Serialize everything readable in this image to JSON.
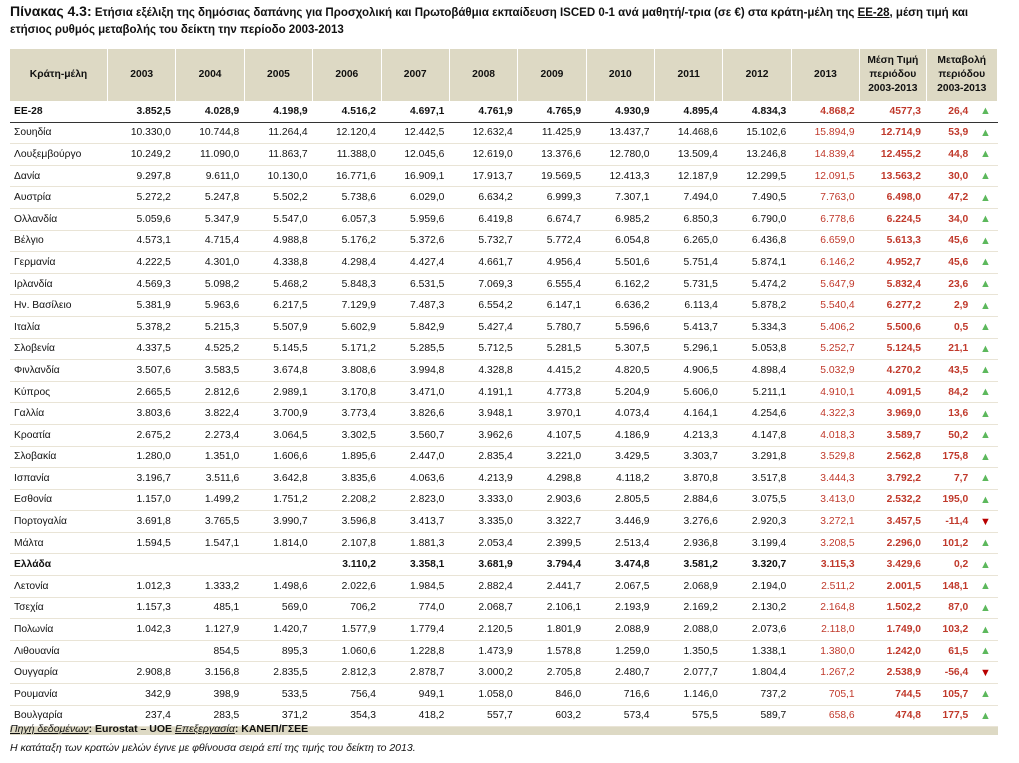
{
  "caption": {
    "label": "Πίνακας 4.3:",
    "text": " Ετήσια εξέλιξη της δημόσιας δαπάνης για Προσχολική και Πρωτοβάθμια εκπαίδευση ISCED 0-1 ανά μαθητή/-τρια (σε €) στα κράτη-μέλη της ",
    "link": "ΕΕ-28",
    "text2": ", μέση τιμή και ετήσιος ρυθμός μεταβολής του δείκτη την περίοδο 2003-2013"
  },
  "headers": [
    "Κράτη-μέλη",
    "2003",
    "2004",
    "2005",
    "2006",
    "2007",
    "2008",
    "2009",
    "2010",
    "2011",
    "2012",
    "2013",
    "Μέση Τιμή περιόδου 2003-2013",
    "Μεταβολή περιόδου 2003-2013"
  ],
  "rows": [
    {
      "country": "ΕΕ-28",
      "values": [
        "3.852,5",
        "4.028,9",
        "4.198,9",
        "4.516,2",
        "4.697,1",
        "4.761,9",
        "4.765,9",
        "4.930,9",
        "4.895,4",
        "4.834,3",
        "4.868,2"
      ],
      "avg": "4577,3",
      "change": "26,4",
      "trend": "▲",
      "style": "eu"
    },
    {
      "country": "Σουηδία",
      "values": [
        "10.330,0",
        "10.744,8",
        "11.264,4",
        "12.120,4",
        "12.442,5",
        "12.632,4",
        "11.425,9",
        "13.437,7",
        "14.468,6",
        "15.102,6",
        "15.894,9"
      ],
      "avg": "12.714,9",
      "change": "53,9",
      "trend": "▲",
      "style": ""
    },
    {
      "country": "Λουξεμβούργο",
      "values": [
        "10.249,2",
        "11.090,0",
        "11.863,7",
        "11.388,0",
        "12.045,6",
        "12.619,0",
        "13.376,6",
        "12.780,0",
        "13.509,4",
        "13.246,8",
        "14.839,4"
      ],
      "avg": "12.455,2",
      "change": "44,8",
      "trend": "▲",
      "style": ""
    },
    {
      "country": "Δανία",
      "values": [
        "9.297,8",
        "9.611,0",
        "10.130,0",
        "16.771,6",
        "16.909,1",
        "17.913,7",
        "19.569,5",
        "12.413,3",
        "12.187,9",
        "12.299,5",
        "12.091,5"
      ],
      "avg": "13.563,2",
      "change": "30,0",
      "trend": "▲",
      "style": ""
    },
    {
      "country": "Αυστρία",
      "values": [
        "5.272,2",
        "5.247,8",
        "5.502,2",
        "5.738,6",
        "6.029,0",
        "6.634,2",
        "6.999,3",
        "7.307,1",
        "7.494,0",
        "7.490,5",
        "7.763,0"
      ],
      "avg": "6.498,0",
      "change": "47,2",
      "trend": "▲",
      "style": ""
    },
    {
      "country": "Ολλανδία",
      "values": [
        "5.059,6",
        "5.347,9",
        "5.547,0",
        "6.057,3",
        "5.959,6",
        "6.419,8",
        "6.674,7",
        "6.985,2",
        "6.850,3",
        "6.790,0",
        "6.778,6"
      ],
      "avg": "6.224,5",
      "change": "34,0",
      "trend": "▲",
      "style": ""
    },
    {
      "country": "Βέλγιο",
      "values": [
        "4.573,1",
        "4.715,4",
        "4.988,8",
        "5.176,2",
        "5.372,6",
        "5.732,7",
        "5.772,4",
        "6.054,8",
        "6.265,0",
        "6.436,8",
        "6.659,0"
      ],
      "avg": "5.613,3",
      "change": "45,6",
      "trend": "▲",
      "style": ""
    },
    {
      "country": "Γερμανία",
      "values": [
        "4.222,5",
        "4.301,0",
        "4.338,8",
        "4.298,4",
        "4.427,4",
        "4.661,7",
        "4.956,4",
        "5.501,6",
        "5.751,4",
        "5.874,1",
        "6.146,2"
      ],
      "avg": "4.952,7",
      "change": "45,6",
      "trend": "▲",
      "style": ""
    },
    {
      "country": "Ιρλανδία",
      "values": [
        "4.569,3",
        "5.098,2",
        "5.468,2",
        "5.848,3",
        "6.531,5",
        "7.069,3",
        "6.555,4",
        "6.162,2",
        "5.731,5",
        "5.474,2",
        "5.647,9"
      ],
      "avg": "5.832,4",
      "change": "23,6",
      "trend": "▲",
      "style": ""
    },
    {
      "country": "Ην. Βασίλειο",
      "values": [
        "5.381,9",
        "5.963,6",
        "6.217,5",
        "7.129,9",
        "7.487,3",
        "6.554,2",
        "6.147,1",
        "6.636,2",
        "6.113,4",
        "5.878,2",
        "5.540,4"
      ],
      "avg": "6.277,2",
      "change": "2,9",
      "trend": "▲",
      "style": ""
    },
    {
      "country": "Ιταλία",
      "values": [
        "5.378,2",
        "5.215,3",
        "5.507,9",
        "5.602,9",
        "5.842,9",
        "5.427,4",
        "5.780,7",
        "5.596,6",
        "5.413,7",
        "5.334,3",
        "5.406,2"
      ],
      "avg": "5.500,6",
      "change": "0,5",
      "trend": "▲",
      "style": ""
    },
    {
      "country": "Σλοβενία",
      "values": [
        "4.337,5",
        "4.525,2",
        "5.145,5",
        "5.171,2",
        "5.285,5",
        "5.712,5",
        "5.281,5",
        "5.307,5",
        "5.296,1",
        "5.053,8",
        "5.252,7"
      ],
      "avg": "5.124,5",
      "change": "21,1",
      "trend": "▲",
      "style": ""
    },
    {
      "country": "Φινλανδία",
      "values": [
        "3.507,6",
        "3.583,5",
        "3.674,8",
        "3.808,6",
        "3.994,8",
        "4.328,8",
        "4.415,2",
        "4.820,5",
        "4.906,5",
        "4.898,4",
        "5.032,9"
      ],
      "avg": "4.270,2",
      "change": "43,5",
      "trend": "▲",
      "style": ""
    },
    {
      "country": "Κύπρος",
      "values": [
        "2.665,5",
        "2.812,6",
        "2.989,1",
        "3.170,8",
        "3.471,0",
        "4.191,1",
        "4.773,8",
        "5.204,9",
        "5.606,0",
        "5.211,1",
        "4.910,1"
      ],
      "avg": "4.091,5",
      "change": "84,2",
      "trend": "▲",
      "style": ""
    },
    {
      "country": "Γαλλία",
      "values": [
        "3.803,6",
        "3.822,4",
        "3.700,9",
        "3.773,4",
        "3.826,6",
        "3.948,1",
        "3.970,1",
        "4.073,4",
        "4.164,1",
        "4.254,6",
        "4.322,3"
      ],
      "avg": "3.969,0",
      "change": "13,6",
      "trend": "▲",
      "style": ""
    },
    {
      "country": "Κροατία",
      "values": [
        "2.675,2",
        "2.273,4",
        "3.064,5",
        "3.302,5",
        "3.560,7",
        "3.962,6",
        "4.107,5",
        "4.186,9",
        "4.213,3",
        "4.147,8",
        "4.018,3"
      ],
      "avg": "3.589,7",
      "change": "50,2",
      "trend": "▲",
      "style": ""
    },
    {
      "country": "Σλοβακία",
      "values": [
        "1.280,0",
        "1.351,0",
        "1.606,6",
        "1.895,6",
        "2.447,0",
        "2.835,4",
        "3.221,0",
        "3.429,5",
        "3.303,7",
        "3.291,8",
        "3.529,8"
      ],
      "avg": "2.562,8",
      "change": "175,8",
      "trend": "▲",
      "style": ""
    },
    {
      "country": "Ισπανία",
      "values": [
        "3.196,7",
        "3.511,6",
        "3.642,8",
        "3.835,6",
        "4.063,6",
        "4.213,9",
        "4.298,8",
        "4.118,2",
        "3.870,8",
        "3.517,8",
        "3.444,3"
      ],
      "avg": "3.792,2",
      "change": "7,7",
      "trend": "▲",
      "style": ""
    },
    {
      "country": "Εσθονία",
      "values": [
        "1.157,0",
        "1.499,2",
        "1.751,2",
        "2.208,2",
        "2.823,0",
        "3.333,0",
        "2.903,6",
        "2.805,5",
        "2.884,6",
        "3.075,5",
        "3.413,0"
      ],
      "avg": "2.532,2",
      "change": "195,0",
      "trend": "▲",
      "style": ""
    },
    {
      "country": "Πορτογαλία",
      "values": [
        "3.691,8",
        "3.765,5",
        "3.990,7",
        "3.596,8",
        "3.413,7",
        "3.335,0",
        "3.322,7",
        "3.446,9",
        "3.276,6",
        "2.920,3",
        "3.272,1"
      ],
      "avg": "3.457,5",
      "change": "-11,4",
      "trend": "▼",
      "style": ""
    },
    {
      "country": "Μάλτα",
      "values": [
        "1.594,5",
        "1.547,1",
        "1.814,0",
        "2.107,8",
        "1.881,3",
        "2.053,4",
        "2.399,5",
        "2.513,4",
        "2.936,8",
        "3.199,4",
        "3.208,5"
      ],
      "avg": "2.296,0",
      "change": "101,2",
      "trend": "▲",
      "style": ""
    },
    {
      "country": "Ελλάδα",
      "values": [
        "",
        "",
        "",
        "3.110,2",
        "3.358,1",
        "3.681,9",
        "3.794,4",
        "3.474,8",
        "3.581,2",
        "3.320,7",
        "3.115,3"
      ],
      "avg": "3.429,6",
      "change": "0,2",
      "trend": "▲",
      "style": "hl"
    },
    {
      "country": "Λετονία",
      "values": [
        "1.012,3",
        "1.333,2",
        "1.498,6",
        "2.022,6",
        "1.984,5",
        "2.882,4",
        "2.441,7",
        "2.067,5",
        "2.068,9",
        "2.194,0",
        "2.511,2"
      ],
      "avg": "2.001,5",
      "change": "148,1",
      "trend": "▲",
      "style": ""
    },
    {
      "country": "Τσεχία",
      "values": [
        "1.157,3",
        "485,1",
        "569,0",
        "706,2",
        "774,0",
        "2.068,7",
        "2.106,1",
        "2.193,9",
        "2.169,2",
        "2.130,2",
        "2.164,8"
      ],
      "avg": "1.502,2",
      "change": "87,0",
      "trend": "▲",
      "style": ""
    },
    {
      "country": "Πολωνία",
      "values": [
        "1.042,3",
        "1.127,9",
        "1.420,7",
        "1.577,9",
        "1.779,4",
        "2.120,5",
        "1.801,9",
        "2.088,9",
        "2.088,0",
        "2.073,6",
        "2.118,0"
      ],
      "avg": "1.749,0",
      "change": "103,2",
      "trend": "▲",
      "style": ""
    },
    {
      "country": "Λιθουανία",
      "values": [
        "",
        "854,5",
        "895,3",
        "1.060,6",
        "1.228,8",
        "1.473,9",
        "1.578,8",
        "1.259,0",
        "1.350,5",
        "1.338,1",
        "1.380,0"
      ],
      "avg": "1.242,0",
      "change": "61,5",
      "trend": "▲",
      "style": ""
    },
    {
      "country": "Ουγγαρία",
      "values": [
        "2.908,8",
        "3.156,8",
        "2.835,5",
        "2.812,3",
        "2.878,7",
        "3.000,2",
        "2.705,8",
        "2.480,7",
        "2.077,7",
        "1.804,4",
        "1.267,2"
      ],
      "avg": "2.538,9",
      "change": "-56,4",
      "trend": "▼",
      "style": ""
    },
    {
      "country": "Ρουμανία",
      "values": [
        "342,9",
        "398,9",
        "533,5",
        "756,4",
        "949,1",
        "1.058,0",
        "846,0",
        "716,6",
        "1.146,0",
        "737,2",
        "705,1"
      ],
      "avg": "744,5",
      "change": "105,7",
      "trend": "▲",
      "style": ""
    },
    {
      "country": "Βουλγαρία",
      "values": [
        "237,4",
        "283,5",
        "371,2",
        "354,3",
        "418,2",
        "557,7",
        "603,2",
        "573,4",
        "575,5",
        "589,7",
        "658,6"
      ],
      "avg": "474,8",
      "change": "177,5",
      "trend": "▲",
      "style": ""
    }
  ],
  "notes": {
    "source_label": "Πηγή δεδομένων",
    "source_value": ": Eurostat – UOE ",
    "processing_label": "Επεξεργασία",
    "processing_value": ": ΚΑΝΕΠ/ΓΣΕΕ",
    "ranking_note": "Η κατάταξη των κρατών μελών έγινε με φθίνουσα σειρά επί της τιμής του δείκτη το 2013."
  },
  "colors": {
    "header_bg": "#ddd9c4",
    "highlight_red": "#c0392b",
    "trend_up": "#5cb85c",
    "trend_down": "#b80000"
  }
}
